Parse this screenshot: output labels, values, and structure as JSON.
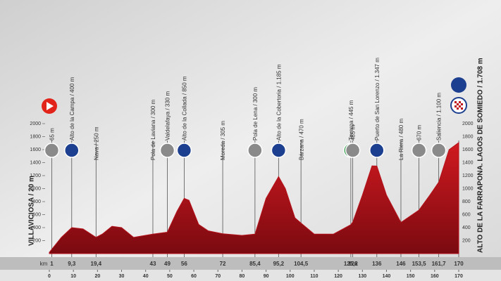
{
  "chart_data": {
    "type": "area",
    "start_label": "VILLAVICIOSA / 20 m",
    "finish_label": "ALTO DE LA FARRAPONA. LAGOS DE SOMIEDO / 1.708 m",
    "x": [
      0,
      1,
      5,
      9.3,
      14,
      19.4,
      22,
      26,
      30,
      35,
      43,
      49,
      53,
      56,
      58,
      62,
      66,
      72,
      80,
      85.4,
      90,
      95.2,
      98,
      102,
      104.5,
      110,
      118,
      125.2,
      126,
      130,
      134,
      136,
      140,
      144,
      146,
      153.5,
      158,
      161.7,
      166,
      170
    ],
    "values": [
      20,
      65,
      250,
      400,
      380,
      250,
      300,
      420,
      400,
      250,
      300,
      330,
      650,
      850,
      820,
      450,
      350,
      305,
      280,
      300,
      850,
      1185,
      1000,
      550,
      470,
      300,
      300,
      445,
      485,
      900,
      1350,
      1347,
      900,
      620,
      480,
      670,
      900,
      1100,
      1600,
      1708
    ],
    "color": "#b5121b",
    "xlim": [
      0,
      170
    ],
    "ylim": [
      0,
      2000
    ],
    "xticks": [
      0,
      10,
      20,
      30,
      40,
      50,
      60,
      70,
      80,
      90,
      100,
      110,
      120,
      130,
      140,
      150,
      160,
      170
    ],
    "yticks": [
      200,
      400,
      600,
      800,
      1000,
      1200,
      1400,
      1600,
      1800,
      2000
    ],
    "km_label": "km",
    "waypoints": [
      {
        "km": 1,
        "name": "65 m",
        "marker_color": "#8a8a8a"
      },
      {
        "km": {
          "value": 9.3,
          "label": "9,3"
        },
        "name": "Alto de la Campa / 400 m",
        "marker_color": "#1d3f8f"
      },
      {
        "km": {
          "value": 19.4,
          "label": "19,4"
        },
        "name": "Nava / 250 m"
      },
      {
        "km": 43,
        "name": "Pola de Laviana / 300 m"
      },
      {
        "km": 49,
        "name": "Valdelafaya / 330 m",
        "marker_color": "#8a8a8a"
      },
      {
        "km": 56,
        "name": "Alto de la Collada / 850 m",
        "marker_color": "#1d3f8f"
      },
      {
        "km": 72,
        "name": "Moreda / 305 m"
      },
      {
        "km": {
          "value": 85.4,
          "label": "85,4"
        },
        "name": "Pola de Lena / 300 m",
        "marker_color": "#8a8a8a"
      },
      {
        "km": {
          "value": 95.2,
          "label": "95,2"
        },
        "name": "Alto de la Cobertoria / 1.185 m",
        "marker_color": "#1d3f8f"
      },
      {
        "km": {
          "value": 104.5,
          "label": "104,5"
        },
        "name": "Bárzana / 470 m"
      },
      {
        "km": {
          "value": 125.2,
          "label": "125,2"
        },
        "name": "Teverga / 445 m",
        "marker_color": "#2e9a48"
      },
      {
        "km": 126,
        "name": "485 m",
        "marker_color": "#8a8a8a"
      },
      {
        "km": 136,
        "name": "Puerto de San Lorenzo / 1.347 m",
        "marker_color": "#1d3f8f"
      },
      {
        "km": 146,
        "name": "La Riera / 480 m"
      },
      {
        "km": {
          "value": 153.5,
          "label": "153,5"
        },
        "name": "670 m",
        "marker_color": "#8a8a8a"
      },
      {
        "km": {
          "value": 161.7,
          "label": "161,7"
        },
        "name": "Saliencia / 1.100 m",
        "marker_color": "#8a8a8a"
      },
      {
        "km": 170
      }
    ]
  }
}
